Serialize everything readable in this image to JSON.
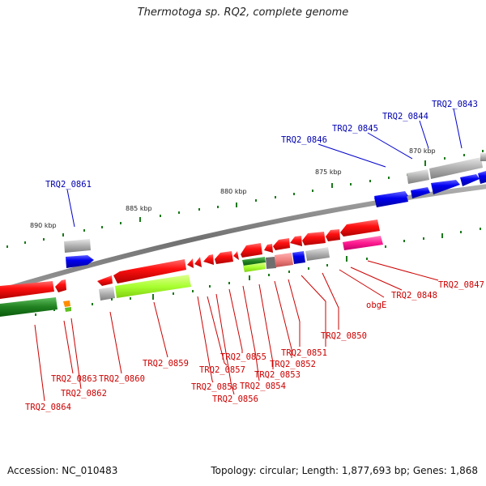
{
  "title": "Thermotoga sp. RQ2, complete genome",
  "footer": {
    "accession": "Accession: NC_010483",
    "info": "Topology: circular; Length: 1,877,693 bp; Genes: 1,868"
  },
  "scale_labels": [
    "870 kbp",
    "875 kbp",
    "880 kbp",
    "885 kbp",
    "890 kbp"
  ],
  "gene_labels": {
    "forward": [
      "TRQ2_0843",
      "TRQ2_0844",
      "TRQ2_0845",
      "TRQ2_0846",
      "TRQ2_0861"
    ],
    "reverse": [
      "TRQ2_0847",
      "TRQ2_0848",
      "obgE",
      "TRQ2_0850",
      "TRQ2_0851",
      "TRQ2_0852",
      "TRQ2_0853",
      "TRQ2_0854",
      "TRQ2_0855",
      "TRQ2_0856",
      "TRQ2_0857",
      "TRQ2_0858",
      "TRQ2_0859",
      "TRQ2_0860",
      "TRQ2_0862",
      "TRQ2_0863",
      "TRQ2_0864"
    ]
  },
  "colors": {
    "forward_cds": "#0000ee",
    "reverse_cds": "#ee0000",
    "backbone": "#888888",
    "tick": "#1a7a1a",
    "label_forward": "#0000b0",
    "label_reverse": "#cc0000"
  }
}
